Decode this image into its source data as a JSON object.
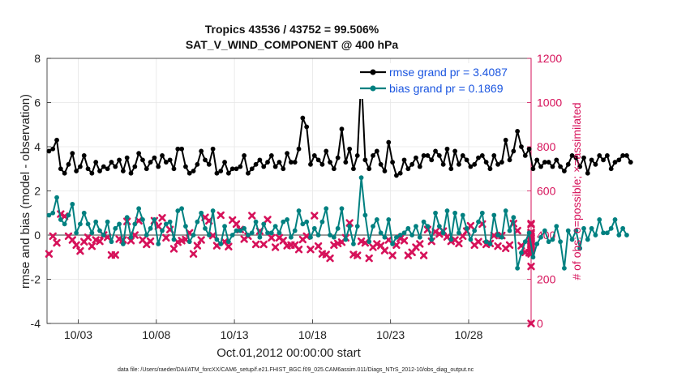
{
  "chart_data": {
    "type": "line",
    "title": "Tropics 43536 / 43752 = 99.506%",
    "subtitle": "SAT_V_WIND_COMPONENT @ 400 hPa",
    "xlabel": "Oct.01,2012 00:00:00 start",
    "ylabel": "rmse and bias (model - observation)",
    "ylabel_right": "# of obs: o=possible; ×=assimilated",
    "footnote": "data file: /Users/raeder/DAI/ATM_forcXX/CAM6_setup/f.e21.FHIST_BGC.f09_025.CAM6assim.011/Diags_NTrS_2012-10/obs_diag_output.nc",
    "x_ticks": [
      "10/03",
      "10/08",
      "10/13",
      "10/18",
      "10/23",
      "10/28"
    ],
    "x_tick_days": [
      3,
      8,
      13,
      18,
      23,
      28
    ],
    "xlim": [
      1.0,
      32.0
    ],
    "ylim": [
      -4,
      8
    ],
    "y_ticks": [
      "-4",
      "-2",
      "0",
      "2",
      "4",
      "6",
      "8"
    ],
    "y_right_lim": [
      0,
      1200
    ],
    "y_right_ticks": [
      "0",
      "200",
      "400",
      "600",
      "800",
      "1000",
      "1200"
    ],
    "grid": true,
    "legend_position": "top-right",
    "colors": {
      "rmse": "#000000",
      "bias": "#008080",
      "obs": "#d6125a",
      "zero_line": "#9a9a9a",
      "legend_text": "#1a55e0"
    },
    "x_step_days": 0.25,
    "x_start_day": 1.125,
    "series": [
      {
        "name": "rmse grand pr = 3.4087",
        "key": "rmse",
        "values": [
          3.8,
          3.9,
          4.3,
          3.0,
          2.8,
          3.2,
          3.7,
          2.9,
          3.1,
          3.6,
          3.0,
          2.8,
          3.3,
          2.9,
          3.1,
          3.0,
          3.3,
          3.1,
          3.4,
          2.9,
          3.5,
          2.8,
          3.1,
          3.7,
          3.4,
          3.0,
          3.3,
          3.5,
          3.1,
          3.6,
          3.3,
          3.4,
          3.0,
          3.9,
          3.9,
          3.1,
          2.8,
          2.9,
          3.2,
          3.8,
          3.4,
          3.2,
          3.9,
          2.8,
          2.9,
          3.3,
          2.8,
          3.0,
          3.0,
          3.1,
          3.6,
          2.8,
          3.0,
          3.2,
          3.4,
          3.1,
          3.3,
          3.6,
          3.1,
          3.3,
          3.0,
          3.7,
          3.3,
          3.3,
          3.9,
          5.3,
          4.9,
          3.2,
          3.6,
          3.4,
          3.2,
          3.8,
          3.3,
          3.0,
          3.5,
          4.8,
          3.3,
          3.9,
          3.0,
          3.6,
          7.2,
          3.4,
          3.0,
          3.6,
          3.8,
          3.2,
          2.9,
          4.2,
          3.3,
          2.7,
          2.8,
          3.4,
          3.0,
          3.2,
          3.5,
          3.1,
          3.6,
          3.6,
          3.4,
          3.8,
          3.6,
          3.2,
          3.9,
          3.0,
          3.8,
          3.2,
          3.6,
          3.4,
          3.1,
          3.2,
          3.5,
          3.6,
          3.3,
          3.0,
          3.6,
          3.2,
          3.3,
          4.3,
          3.4,
          3.8,
          4.7,
          4.0,
          3.6,
          3.9,
          3.0,
          3.4,
          3.1,
          3.3,
          3.3,
          3.1,
          3.4,
          3.1,
          2.9,
          3.2,
          3.6,
          3.5,
          3.1,
          3.5,
          2.8,
          3.4,
          3.2,
          3.6,
          3.4,
          3.6,
          3.0,
          3.3,
          3.4,
          3.6,
          3.6,
          3.3
        ]
      },
      {
        "name": "bias grand pr = 0.1869",
        "key": "bias",
        "values": [
          0.9,
          1.0,
          1.7,
          0.7,
          0.5,
          0.9,
          1.4,
          0.1,
          0.5,
          1.0,
          0.5,
          0.1,
          0.6,
          0.2,
          0.0,
          0.6,
          -0.3,
          0.3,
          0.5,
          -0.4,
          0.8,
          -0.1,
          0.5,
          1.2,
          0.7,
          0.0,
          0.3,
          0.7,
          -0.4,
          0.2,
          0.5,
          0.6,
          -0.2,
          1.1,
          1.2,
          0.4,
          -0.3,
          0.0,
          0.6,
          1.0,
          0.3,
          0.0,
          1.1,
          -0.2,
          -0.4,
          0.4,
          -0.3,
          0.0,
          0.2,
          0.2,
          0.3,
          0.0,
          0.1,
          0.6,
          -0.1,
          0.5,
          0.1,
          0.1,
          0.4,
          0.1,
          0.6,
          0.7,
          -0.1,
          0.2,
          1.1,
          0.5,
          0.6,
          -0.1,
          0.3,
          0.0,
          0.6,
          1.2,
          0.0,
          -0.1,
          0.3,
          1.2,
          -0.2,
          0.4,
          -0.4,
          0.4,
          2.6,
          0.9,
          -0.3,
          0.4,
          0.7,
          0.1,
          -0.1,
          0.7,
          -0.4,
          -0.1,
          0.0,
          0.1,
          0.3,
          0.0,
          0.4,
          -0.1,
          0.6,
          0.4,
          -0.2,
          1.0,
          0.4,
          0.1,
          1.1,
          -0.2,
          1.0,
          0.1,
          0.9,
          0.3,
          -0.2,
          0.2,
          0.6,
          1.0,
          -0.3,
          -0.4,
          0.9,
          0.0,
          -0.1,
          1.1,
          0.2,
          0.8,
          -1.5,
          -0.8,
          -0.3,
          0.1,
          -1.0,
          -0.4,
          -0.1,
          0.2,
          -0.3,
          -0.2,
          0.4,
          -0.3,
          -1.5,
          0.2,
          -0.2,
          0.2,
          -0.6,
          0.3,
          -0.2,
          0.3,
          0.0,
          0.7,
          0.1,
          0.1,
          0.3,
          0.7,
          0.0,
          0.3,
          0.0
        ]
      }
    ],
    "obs_assimilated": {
      "name": "assimilated",
      "values": [
        315,
        395,
        365,
        495,
        485,
        395,
        378,
        355,
        328,
        370,
        390,
        350,
        378,
        372,
        400,
        390,
        310,
        310,
        382,
        378,
        462,
        375,
        400,
        465,
        378,
        358,
        372,
        465,
        440,
        478,
        388,
        425,
        338,
        368,
        375,
        380,
        410,
        315,
        352,
        378,
        480,
        465,
        398,
        352,
        490,
        370,
        348,
        468,
        450,
        425,
        382,
        395,
        488,
        358,
        418,
        358,
        470,
        388,
        345,
        388,
        375,
        352,
        355,
        355,
        335,
        380,
        395,
        335,
        488,
        350,
        315,
        312,
        295,
        355,
        362,
        368,
        388,
        455,
        312,
        308,
        372,
        365,
        295,
        345,
        360,
        352,
        330,
        378,
        308,
        355,
        385,
        375,
        308,
        322,
        345,
        360,
        308,
        425,
        372,
        415,
        405,
        418,
        392,
        372,
        378,
        362,
        395,
        418,
        442,
        355,
        370,
        450,
        358,
        362,
        398,
        350,
        398,
        340,
        355,
        452,
        420,
        352,
        322,
        320,
        405,
        330,
        452,
        395,
        345,
        372,
        325,
        375,
        358,
        358,
        410,
        348,
        258,
        368,
        412,
        358,
        358,
        315,
        348,
        362,
        350,
        410,
        362,
        348,
        330,
        330,
        390,
        340,
        350,
        448,
        0
      ]
    },
    "legend": [
      {
        "label": "rmse grand pr = 3.4087",
        "key": "rmse"
      },
      {
        "label": "bias grand pr = 0.1869",
        "key": "bias"
      }
    ]
  }
}
